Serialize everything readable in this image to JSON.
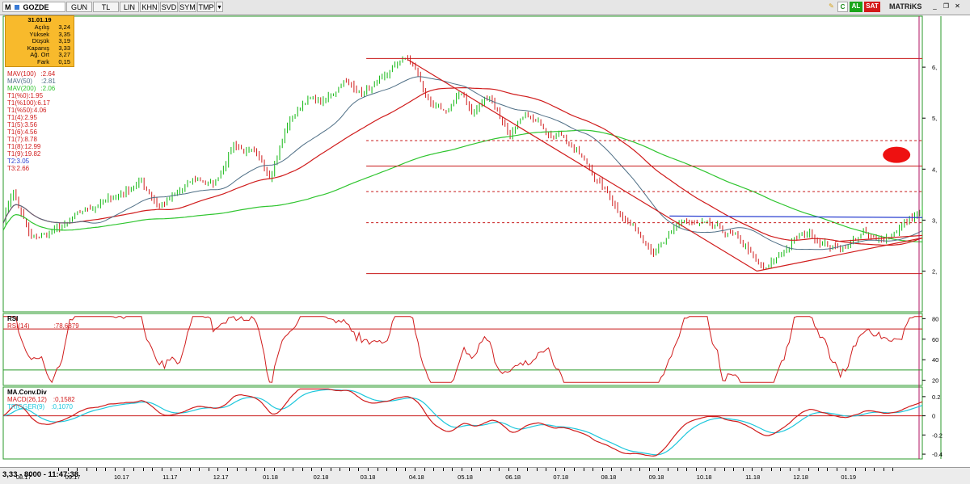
{
  "toolbar": {
    "symbol": "GOZDE",
    "symbol_prefix": "M",
    "buttons": [
      "GUN",
      "TL",
      "LIN",
      "KHN",
      "SVD",
      "SYM",
      "TMP"
    ],
    "right_buttons": {
      "c": "C",
      "al": "AL",
      "sat": "SAT"
    },
    "brand": "MATRiKS",
    "colors": {
      "al": "#1aa51a",
      "sat": "#d31919",
      "c": "#1a8a1a"
    }
  },
  "ohlc": {
    "date": "31.01.19",
    "rows": [
      {
        "label": "Açılış",
        "value": "3,24"
      },
      {
        "label": "Yüksek",
        "value": "3,35"
      },
      {
        "label": "Düşük",
        "value": "3,19"
      },
      {
        "label": "Kapanış",
        "value": "3,33"
      },
      {
        "label": "Ağ. Ort",
        "value": "3,27"
      },
      {
        "label": "Fark",
        "value": "0,15"
      }
    ]
  },
  "indicators": [
    {
      "label": "MAV(100)",
      "value": ":2.64",
      "color": "#d01c1c"
    },
    {
      "label": "MAV(50)",
      "value": ":2.81",
      "color": "#4f6f86"
    },
    {
      "label": "MAV(200)",
      "value": ":2.06",
      "color": "#2fc52f"
    },
    {
      "label": "T1(%0):1.95",
      "value": "",
      "color": "#d01c1c"
    },
    {
      "label": "T1(%100):6.17",
      "value": "",
      "color": "#d01c1c"
    },
    {
      "label": "T1(%50):4.06",
      "value": "",
      "color": "#d01c1c"
    },
    {
      "label": "T1(4):2.95",
      "value": "",
      "color": "#d01c1c"
    },
    {
      "label": "T1(5):3.56",
      "value": "",
      "color": "#d01c1c"
    },
    {
      "label": "T1(6):4.56",
      "value": "",
      "color": "#d01c1c"
    },
    {
      "label": "T1(7):8.78",
      "value": "",
      "color": "#d01c1c"
    },
    {
      "label": "T1(8):12.99",
      "value": "",
      "color": "#d01c1c"
    },
    {
      "label": "T1(9):19.82",
      "value": "",
      "color": "#d01c1c"
    },
    {
      "label": "T2:3.05",
      "value": "",
      "color": "#2a3fd0"
    },
    {
      "label": "T3:2.66",
      "value": "",
      "color": "#d01c1c"
    }
  ],
  "rsi_panel": {
    "title": "RSI",
    "label": "RSI(14)",
    "value": ":78,6879"
  },
  "macd_panel": {
    "title": "MA.Conv.Div",
    "macd_label": "MACD(26,12)",
    "macd_value": ":0,1582",
    "trigger_label": "TRIGGER(9)",
    "trigger_value": ":0,1070"
  },
  "status": {
    "quote": "3,33 - 8000 - 11:47:38"
  },
  "chart_data": {
    "type": "line",
    "main_y_ticks": [
      2,
      3,
      4,
      5,
      6
    ],
    "main_ylim": [
      1.2,
      7.0
    ],
    "rsi_y_ticks": [
      20,
      40,
      60,
      80
    ],
    "rsi_ylim": [
      15,
      85
    ],
    "rsi_levels": [
      70,
      30
    ],
    "macd_y_ticks": [
      -0.4,
      -0.2,
      0,
      0.2
    ],
    "macd_ylim": [
      -0.45,
      0.3
    ],
    "x_labels": [
      {
        "t": 0.0245,
        "label": "08.17"
      },
      {
        "t": 0.078,
        "label": "09.17"
      },
      {
        "t": 0.131,
        "label": "10.17"
      },
      {
        "t": 0.184,
        "label": "11.17"
      },
      {
        "t": 0.239,
        "label": "12.17"
      },
      {
        "t": 0.293,
        "label": "01.18"
      },
      {
        "t": 0.348,
        "label": "02.18"
      },
      {
        "t": 0.399,
        "label": "03.18"
      },
      {
        "t": 0.452,
        "label": "04.18"
      },
      {
        "t": 0.505,
        "label": "05.18"
      },
      {
        "t": 0.557,
        "label": "06.18"
      },
      {
        "t": 0.609,
        "label": "07.18"
      },
      {
        "t": 0.661,
        "label": "08.18"
      },
      {
        "t": 0.713,
        "label": "09.18"
      },
      {
        "t": 0.765,
        "label": "10.18"
      },
      {
        "t": 0.818,
        "label": "11.18"
      },
      {
        "t": 0.87,
        "label": "12.18"
      },
      {
        "t": 0.922,
        "label": "01.19"
      }
    ],
    "price_anchors": [
      [
        0.0,
        3.0
      ],
      [
        0.01,
        3.6
      ],
      [
        0.03,
        2.6
      ],
      [
        0.05,
        2.75
      ],
      [
        0.07,
        2.9
      ],
      [
        0.09,
        3.2
      ],
      [
        0.11,
        3.35
      ],
      [
        0.13,
        3.55
      ],
      [
        0.15,
        3.75
      ],
      [
        0.17,
        3.3
      ],
      [
        0.19,
        3.5
      ],
      [
        0.21,
        3.8
      ],
      [
        0.23,
        3.7
      ],
      [
        0.25,
        4.5
      ],
      [
        0.27,
        4.3
      ],
      [
        0.29,
        3.9
      ],
      [
        0.31,
        4.9
      ],
      [
        0.33,
        5.4
      ],
      [
        0.35,
        5.3
      ],
      [
        0.37,
        5.75
      ],
      [
        0.39,
        5.5
      ],
      [
        0.41,
        5.65
      ],
      [
        0.43,
        6.1
      ],
      [
        0.44,
        6.15
      ],
      [
        0.45,
        5.9
      ],
      [
        0.465,
        5.2
      ],
      [
        0.48,
        5.1
      ],
      [
        0.5,
        5.5
      ],
      [
        0.51,
        5.1
      ],
      [
        0.53,
        5.45
      ],
      [
        0.55,
        4.7
      ],
      [
        0.57,
        5.0
      ],
      [
        0.59,
        4.8
      ],
      [
        0.61,
        4.7
      ],
      [
        0.63,
        4.2
      ],
      [
        0.65,
        3.7
      ],
      [
        0.67,
        3.2
      ],
      [
        0.69,
        2.8
      ],
      [
        0.71,
        2.4
      ],
      [
        0.725,
        2.65
      ],
      [
        0.74,
        3.0
      ],
      [
        0.75,
        2.9
      ],
      [
        0.77,
        2.85
      ],
      [
        0.79,
        2.7
      ],
      [
        0.81,
        2.45
      ],
      [
        0.82,
        2.1
      ],
      [
        0.83,
        2.0
      ],
      [
        0.845,
        2.3
      ],
      [
        0.86,
        2.6
      ],
      [
        0.875,
        2.75
      ],
      [
        0.89,
        2.6
      ],
      [
        0.905,
        2.45
      ],
      [
        0.92,
        2.55
      ],
      [
        0.935,
        2.75
      ],
      [
        0.95,
        2.55
      ],
      [
        0.97,
        2.8
      ],
      [
        0.985,
        3.0
      ],
      [
        1.0,
        3.2
      ]
    ],
    "trend_lines_price": [
      {
        "x1": 0.44,
        "y1": 6.15,
        "x2": 0.82,
        "y2": 2.0,
        "color": "#d01c1c"
      },
      {
        "x1": 0.82,
        "y1": 2.0,
        "x2": 1.0,
        "y2": 2.65,
        "color": "#d01c1c"
      },
      {
        "x1": 0.905,
        "y1": 2.58,
        "x2": 1.0,
        "y2": 2.7,
        "color": "#d01c1c"
      },
      {
        "x1": 0.725,
        "y1": 3.08,
        "x2": 1.0,
        "y2": 3.05,
        "color": "#2a3fd0"
      }
    ],
    "horizontal_levels": [
      {
        "y": 6.17,
        "style": "solid"
      },
      {
        "y": 4.56,
        "style": "dashed"
      },
      {
        "y": 4.06,
        "style": "solid"
      },
      {
        "y": 3.56,
        "style": "dashed"
      },
      {
        "y": 2.95,
        "style": "dashed"
      },
      {
        "y": 1.95,
        "style": "solid"
      }
    ],
    "highlight_marker": {
      "x": 0.972,
      "y": 4.28,
      "color": "#ee1111"
    }
  }
}
